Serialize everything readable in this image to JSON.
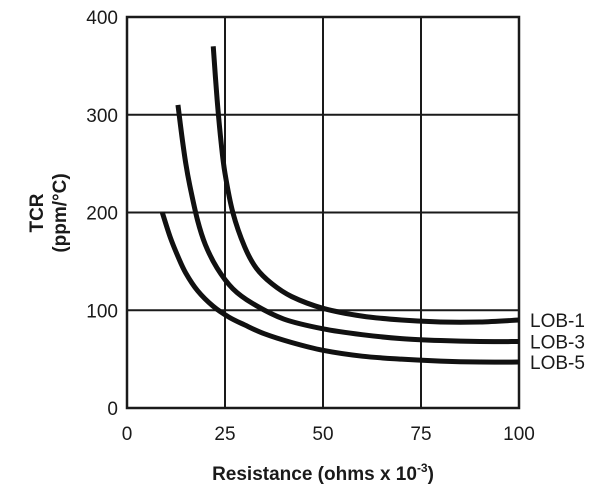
{
  "chart_data": {
    "type": "line",
    "title": "",
    "xlabel": "Resistance (ohms x 10",
    "xlabel_sup": "-3",
    "xlabel_end": ")",
    "ylabel_line1": "TCR",
    "ylabel_line2": "(ppm/°C)",
    "xlim": [
      0,
      100
    ],
    "ylim": [
      0,
      400
    ],
    "x_ticks": [
      "0",
      "25",
      "50",
      "75",
      "100"
    ],
    "y_ticks": [
      "0",
      "100",
      "200",
      "300",
      "400"
    ],
    "grid": true,
    "legend_placement": "right, at line ends",
    "series": [
      {
        "name": "LOB-1",
        "x": [
          22,
          23,
          24,
          25,
          27,
          30,
          33,
          37,
          42,
          50,
          60,
          70,
          80,
          90,
          100
        ],
        "y": [
          370,
          315,
          272,
          240,
          200,
          165,
          143,
          127,
          114,
          102,
          94,
          90,
          88,
          88,
          90
        ]
      },
      {
        "name": "LOB-3",
        "x": [
          13,
          14,
          15,
          16,
          18,
          20,
          23,
          27,
          32,
          40,
          50,
          60,
          70,
          80,
          90,
          100
        ],
        "y": [
          310,
          278,
          250,
          228,
          192,
          167,
          143,
          122,
          107,
          91,
          81,
          75,
          71,
          69,
          68,
          68
        ]
      },
      {
        "name": "LOB-5",
        "x": [
          9,
          11,
          13,
          15,
          18,
          22,
          26,
          30,
          35,
          42,
          50,
          60,
          70,
          80,
          90,
          100
        ],
        "y": [
          200,
          175,
          155,
          138,
          120,
          104,
          93,
          85,
          76,
          67,
          59,
          53,
          50,
          48,
          47,
          47
        ]
      }
    ]
  }
}
